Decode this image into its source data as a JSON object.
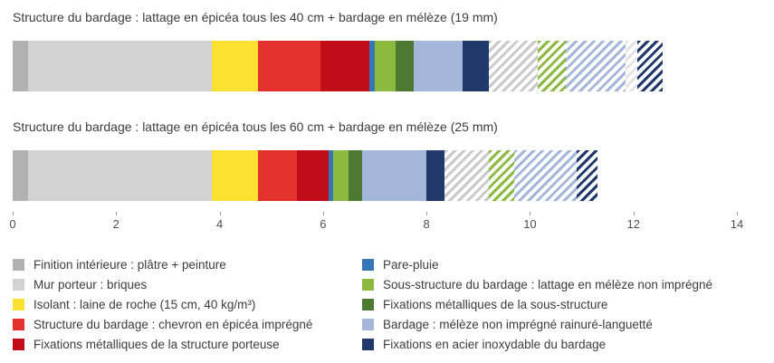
{
  "page": {
    "background": "#ffffff"
  },
  "chart_data": {
    "type": "bar",
    "orientation": "horizontal",
    "stacked": true,
    "axis": {
      "min": 0,
      "max": 14,
      "ticks": [
        0,
        2,
        4,
        6,
        8,
        10,
        12,
        14
      ]
    },
    "legend_position": "bottom",
    "grid": false,
    "colors": {
      "finition": "#b1b1b1",
      "mur": "#d2d2d2",
      "isolant": "#fbe232",
      "chevron": "#e5312b",
      "fix_structure": "#c00d18",
      "pare_pluie": "#3577b5",
      "sous_structure": "#8cb93f",
      "fix_sous_structure": "#4d7a33",
      "bardage": "#a4b6da",
      "fix_bardage": "#21386a",
      "hatch_gray": "#c9c9c9",
      "hatch_light": "#e4e4e4"
    },
    "bars": [
      {
        "id": "lattage-40cm",
        "title": "Structure du bardage : lattage en épicéa tous les 40 cm + bardage en mélèze (19 mm)",
        "segments": [
          {
            "color": "finition",
            "value": 0.3,
            "hatched": false
          },
          {
            "color": "mur",
            "value": 3.55,
            "hatched": false
          },
          {
            "color": "isolant",
            "value": 0.9,
            "hatched": false
          },
          {
            "color": "chevron",
            "value": 1.2,
            "hatched": false
          },
          {
            "color": "fix_structure",
            "value": 0.95,
            "hatched": false
          },
          {
            "color": "pare_pluie",
            "value": 0.1,
            "hatched": false
          },
          {
            "color": "sous_structure",
            "value": 0.4,
            "hatched": false
          },
          {
            "color": "fix_sous_structure",
            "value": 0.35,
            "hatched": false
          },
          {
            "color": "bardage",
            "value": 0.95,
            "hatched": false
          },
          {
            "color": "fix_bardage",
            "value": 0.5,
            "hatched": false
          },
          {
            "color": "hatch_gray",
            "value": 0.95,
            "hatched": true
          },
          {
            "color": "sous_structure",
            "value": 0.55,
            "hatched": true
          },
          {
            "color": "bardage",
            "value": 1.15,
            "hatched": true
          },
          {
            "color": "hatch_light",
            "value": 0.22,
            "hatched": true
          },
          {
            "color": "fix_bardage",
            "value": 0.5,
            "hatched": true
          }
        ]
      },
      {
        "id": "lattage-60cm",
        "title": "Structure du bardage : lattage en épicéa tous les 60 cm + bardage en mélèze (25 mm)",
        "segments": [
          {
            "color": "finition",
            "value": 0.3,
            "hatched": false
          },
          {
            "color": "mur",
            "value": 3.55,
            "hatched": false
          },
          {
            "color": "isolant",
            "value": 0.9,
            "hatched": false
          },
          {
            "color": "chevron",
            "value": 0.75,
            "hatched": false
          },
          {
            "color": "fix_structure",
            "value": 0.6,
            "hatched": false
          },
          {
            "color": "pare_pluie",
            "value": 0.1,
            "hatched": false
          },
          {
            "color": "sous_structure",
            "value": 0.3,
            "hatched": false
          },
          {
            "color": "fix_sous_structure",
            "value": 0.25,
            "hatched": false
          },
          {
            "color": "bardage",
            "value": 1.25,
            "hatched": false
          },
          {
            "color": "fix_bardage",
            "value": 0.35,
            "hatched": false
          },
          {
            "color": "hatch_gray",
            "value": 0.85,
            "hatched": true
          },
          {
            "color": "sous_structure",
            "value": 0.5,
            "hatched": true
          },
          {
            "color": "bardage",
            "value": 1.2,
            "hatched": true
          },
          {
            "color": "fix_bardage",
            "value": 0.4,
            "hatched": true
          }
        ]
      }
    ],
    "legend": {
      "left": [
        {
          "color": "finition",
          "label": "Finition intérieure : plâtre + peinture"
        },
        {
          "color": "mur",
          "label": "Mur porteur : briques"
        },
        {
          "color": "isolant",
          "label": "Isolant : laine de roche (15 cm, 40 kg/m³)"
        },
        {
          "color": "chevron",
          "label": "Structure du bardage : chevron en épicéa imprégné"
        },
        {
          "color": "fix_structure",
          "label": "Fixations métalliques de la structure porteuse"
        }
      ],
      "right": [
        {
          "color": "pare_pluie",
          "label": "Pare-pluie"
        },
        {
          "color": "sous_structure",
          "label": "Sous-structure du bardage : lattage en mélèze non imprégné"
        },
        {
          "color": "fix_sous_structure",
          "label": "Fixations métalliques de la sous-structure"
        },
        {
          "color": "bardage",
          "label": "Bardage : mélèze non imprégné rainuré-languetté"
        },
        {
          "color": "fix_bardage",
          "label": "Fixations en acier inoxydable du bardage"
        }
      ]
    }
  }
}
